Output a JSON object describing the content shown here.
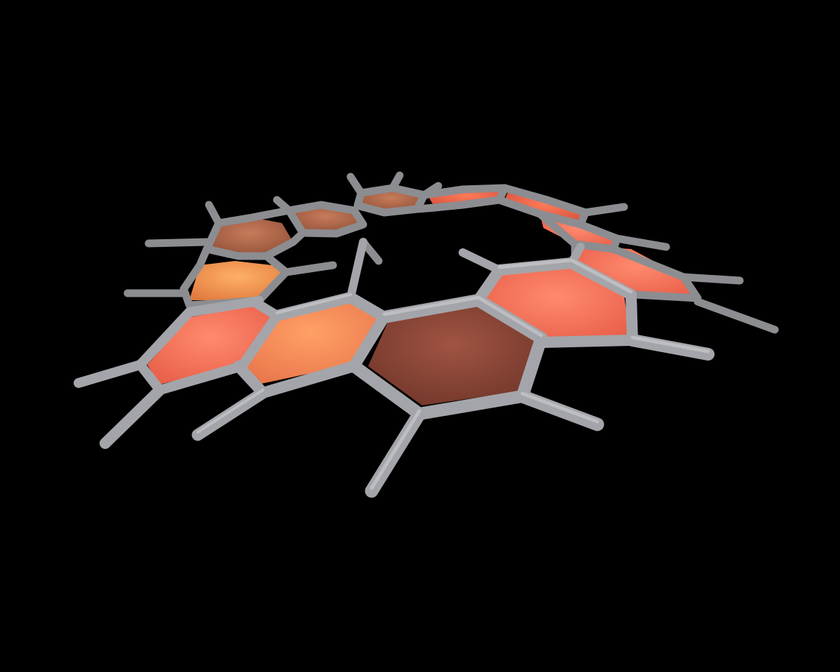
{
  "scene": {
    "subject": "helicene-molecule-render",
    "background_color": "#000000",
    "bond_color": "#8f9094",
    "bond_highlight": "#c9c9cc",
    "ring_fills": {
      "dark_brown": "#8a4638",
      "copper": "#b26a4e",
      "orange": "#f5864e",
      "salmon": "#f6725a",
      "coral": "#ef6f55",
      "amber": "#f49a52"
    }
  }
}
